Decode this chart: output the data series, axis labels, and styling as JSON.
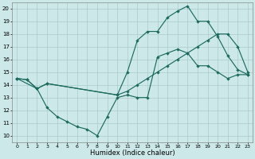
{
  "background_color": "#cce8e8",
  "grid_color": "#aacccc",
  "line_color": "#1e6b5e",
  "xlim_min": -0.5,
  "xlim_max": 23.5,
  "ylim_min": 9.5,
  "ylim_max": 20.5,
  "yticks": [
    10,
    11,
    12,
    13,
    14,
    15,
    16,
    17,
    18,
    19,
    20
  ],
  "xticks": [
    0,
    1,
    2,
    3,
    4,
    5,
    6,
    7,
    8,
    9,
    10,
    11,
    12,
    13,
    14,
    15,
    16,
    17,
    18,
    19,
    20,
    21,
    22,
    23
  ],
  "xlabel": "Humidex (Indice chaleur)",
  "line1_x": [
    0,
    1,
    2,
    3,
    10,
    11,
    12,
    13,
    14,
    15,
    16,
    17,
    18,
    19,
    20,
    21,
    22,
    23
  ],
  "line1_y": [
    14.5,
    14.4,
    13.7,
    14.1,
    13.2,
    13.5,
    14.0,
    14.5,
    15.0,
    15.5,
    16.0,
    16.5,
    17.0,
    17.5,
    18.0,
    18.0,
    17.0,
    15.0
  ],
  "line2_x": [
    0,
    1,
    2,
    3,
    10,
    11,
    12,
    13,
    14,
    15,
    16,
    17,
    18,
    19,
    20,
    21,
    22,
    23
  ],
  "line2_y": [
    14.5,
    14.4,
    13.7,
    14.1,
    13.2,
    15.0,
    17.5,
    18.2,
    18.2,
    19.3,
    19.8,
    20.2,
    19.0,
    19.0,
    17.8,
    16.3,
    15.2,
    14.8
  ],
  "line3_x": [
    0,
    2,
    3,
    4,
    5,
    6,
    7,
    8,
    9,
    10,
    11,
    12,
    13,
    14,
    15,
    16,
    17,
    18,
    19,
    20,
    21,
    22,
    23
  ],
  "line3_y": [
    14.5,
    13.7,
    12.2,
    11.5,
    11.1,
    10.7,
    10.5,
    10.0,
    11.5,
    13.0,
    13.2,
    13.0,
    13.0,
    16.2,
    16.5,
    16.8,
    16.5,
    15.5,
    15.5,
    15.0,
    14.5,
    14.8,
    14.8
  ]
}
